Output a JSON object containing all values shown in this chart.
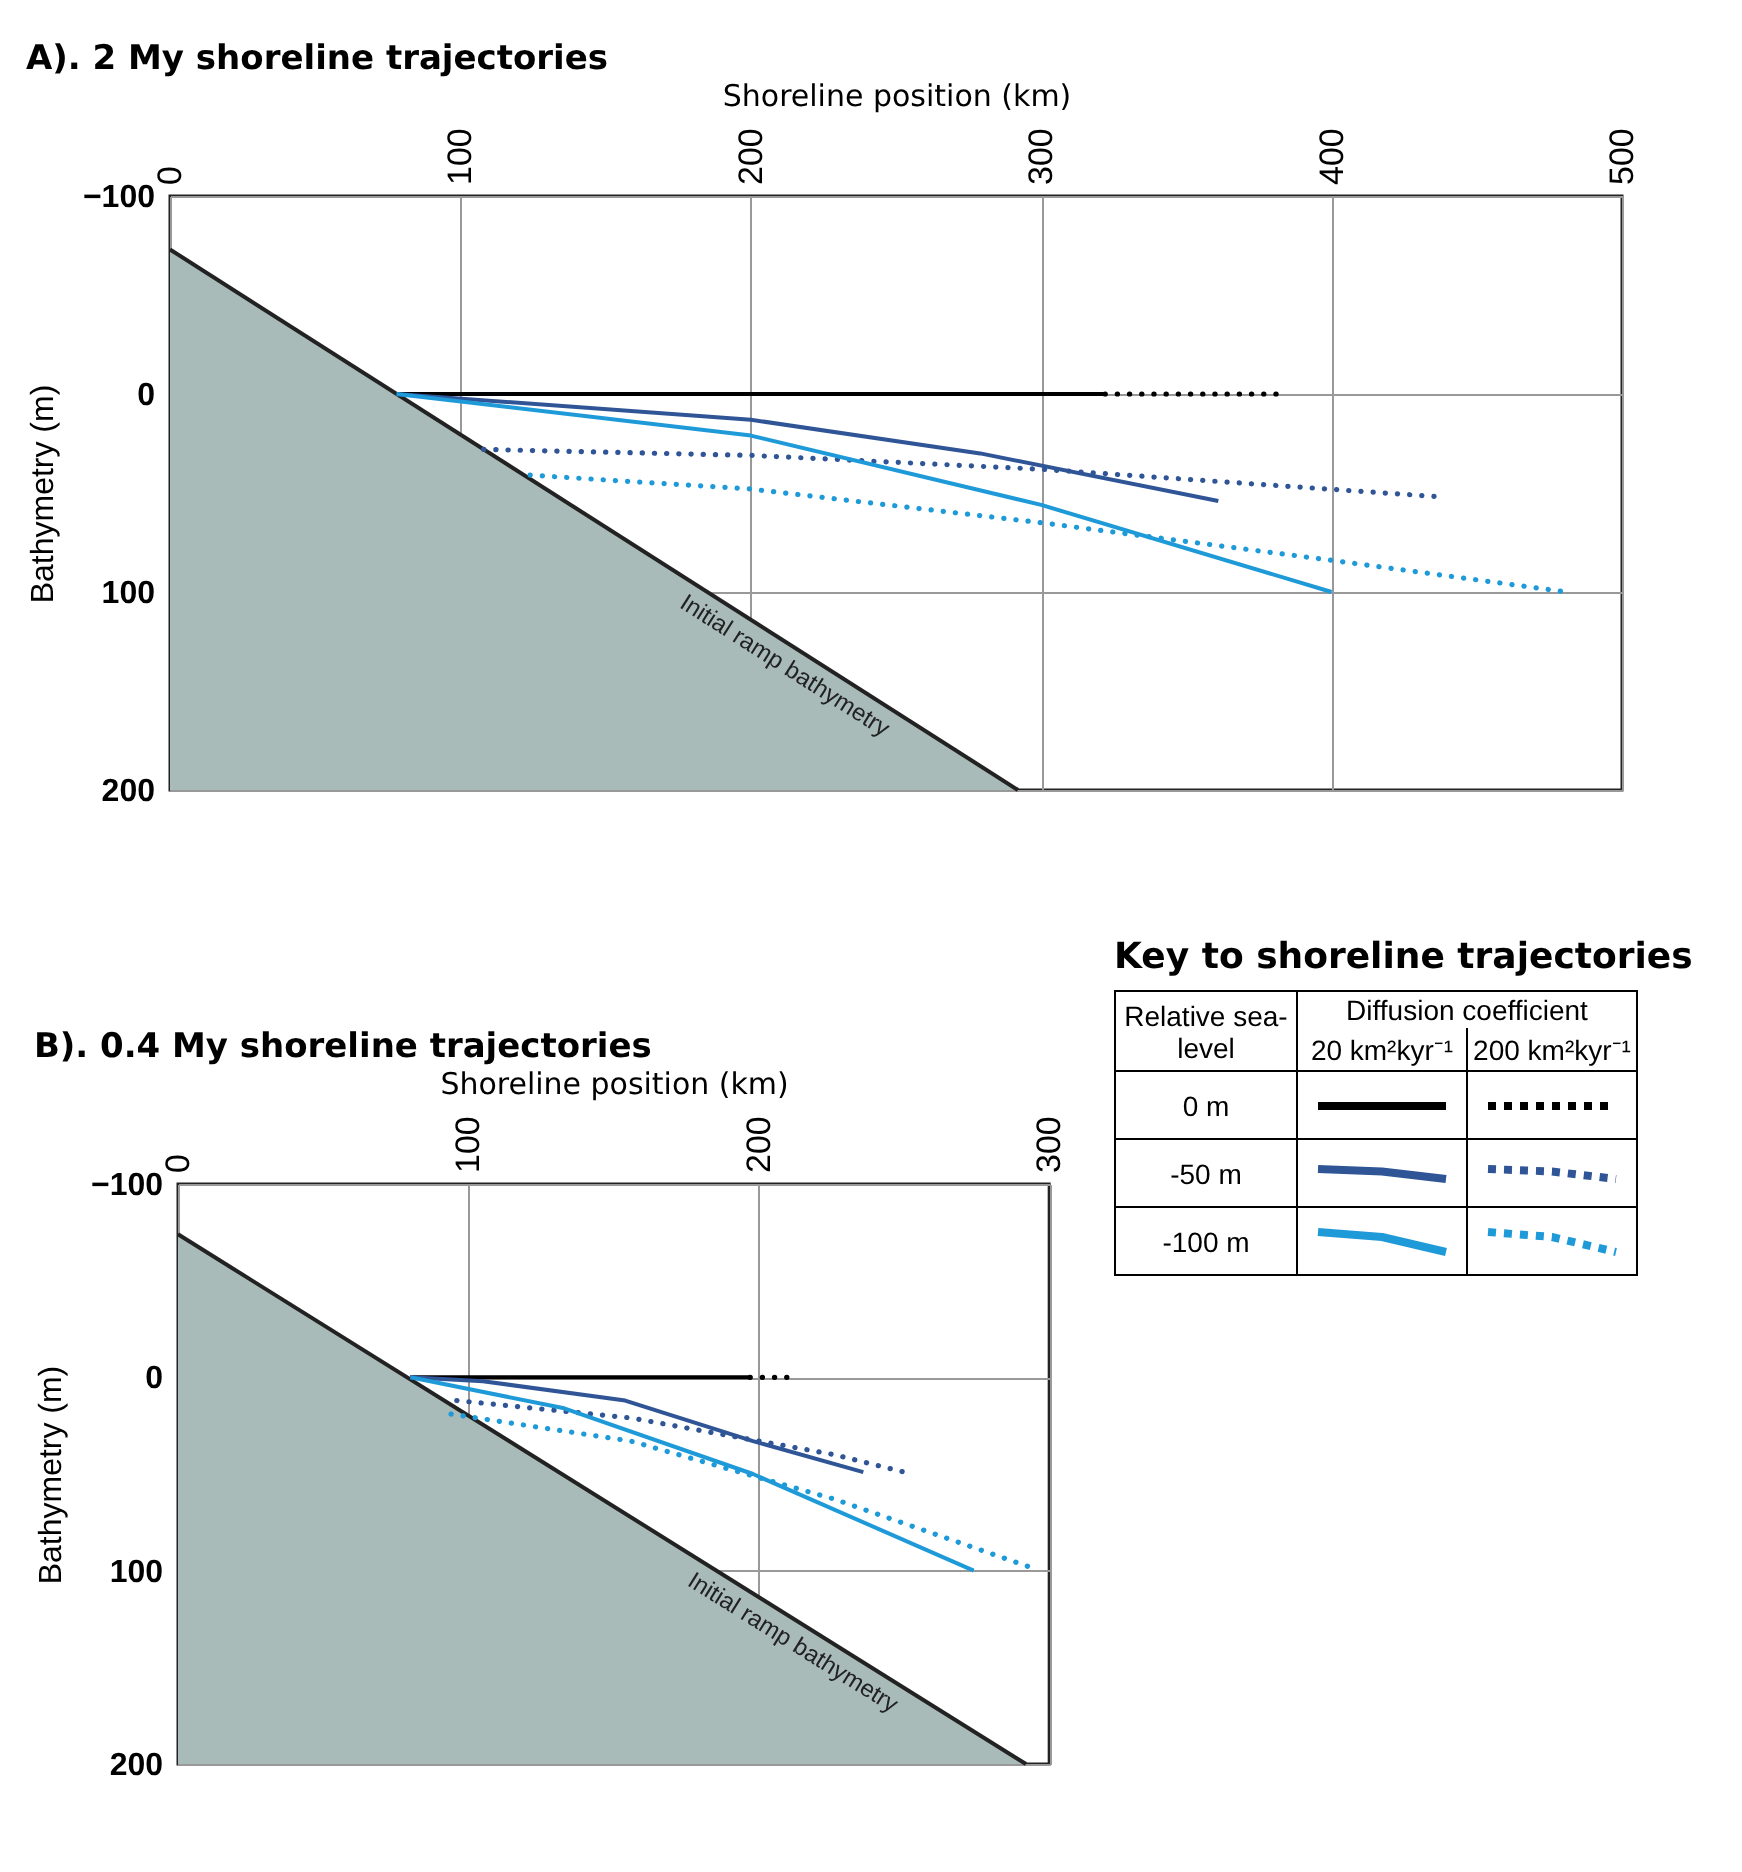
{
  "chart_data": [
    {
      "type": "line",
      "title": "A). 2 My shoreline trajectories",
      "xlabel": "Shoreline position (km)",
      "ylabel": "Bathymetry (m)",
      "xlim": [
        0,
        500
      ],
      "xticks": [
        0,
        100,
        200,
        300,
        400,
        500
      ],
      "ylim": [
        200,
        -100
      ],
      "yticks": [
        -100,
        0,
        100,
        200
      ],
      "grid": true,
      "annotations": [
        "Initial ramp bathymetry"
      ],
      "series": [
        {
          "type": "area",
          "color": "#a9bbb9",
          "x": [
            0,
            292
          ],
          "values": [
            -73,
            200
          ]
        },
        {
          "color": "#000000",
          "line_style": "solid",
          "x": [
            78,
            322
          ],
          "values": [
            0,
            0
          ]
        },
        {
          "color": "#000000",
          "line_style": "dotted",
          "x": [
            322,
            383
          ],
          "values": [
            0,
            0
          ]
        },
        {
          "color": "#2f5597",
          "line_style": "solid",
          "x": [
            78,
            200,
            279,
            361
          ],
          "values": [
            0,
            13,
            30,
            54
          ]
        },
        {
          "color": "#2f5597",
          "line_style": "dotted",
          "x": [
            108,
            200,
            300,
            438
          ],
          "values": [
            28,
            31,
            38,
            52
          ]
        },
        {
          "color": "#1f9ad8",
          "line_style": "solid",
          "x": [
            78,
            200,
            300,
            400
          ],
          "values": [
            0,
            21,
            56,
            100
          ]
        },
        {
          "color": "#1f9ad8",
          "line_style": "dotted",
          "x": [
            124,
            200,
            300,
            400,
            481
          ],
          "values": [
            41,
            48,
            65,
            84,
            100
          ]
        }
      ]
    },
    {
      "type": "line",
      "title": "B). 0.4 My shoreline trajectories",
      "xlabel": "Shoreline position (km)",
      "ylabel": "Bathymetry (m)",
      "xlim": [
        0,
        300
      ],
      "xticks": [
        0,
        100,
        200,
        300
      ],
      "ylim": [
        200,
        -100
      ],
      "yticks": [
        -100,
        0,
        100,
        200
      ],
      "grid": true,
      "annotations": [
        "Initial ramp bathymetry"
      ],
      "series": [
        {
          "type": "area",
          "color": "#a9bbb9",
          "x": [
            0,
            292
          ],
          "values": [
            -74,
            200
          ]
        },
        {
          "color": "#000000",
          "line_style": "solid",
          "x": [
            80,
            197
          ],
          "values": [
            0,
            0
          ]
        },
        {
          "color": "#000000",
          "line_style": "dotted",
          "x": [
            197,
            211
          ],
          "values": [
            0,
            0
          ]
        },
        {
          "color": "#2f5597",
          "line_style": "solid",
          "x": [
            80,
            105,
            154,
            198,
            236
          ],
          "values": [
            0,
            2,
            12,
            33,
            49
          ]
        },
        {
          "color": "#2f5597",
          "line_style": "dotted",
          "x": [
            96,
            156,
            226,
            250
          ],
          "values": [
            12,
            21,
            40,
            49
          ]
        },
        {
          "color": "#1f9ad8",
          "line_style": "solid",
          "x": [
            80,
            133,
            198,
            274
          ],
          "values": [
            0,
            16,
            50,
            100
          ]
        },
        {
          "color": "#1f9ad8",
          "line_style": "dotted",
          "x": [
            94,
            156,
            226,
            295
          ],
          "values": [
            19,
            33,
            63,
            99
          ]
        }
      ]
    },
    {
      "type": "other",
      "title": "Key to shoreline trajectories",
      "annotations": [
        "Relative sea-level",
        "Diffusion coefficient",
        "20 km²kyr⁻¹",
        "200 km²kyr⁻¹",
        "0 m",
        "-50 m",
        "-100 m"
      ]
    }
  ]
}
